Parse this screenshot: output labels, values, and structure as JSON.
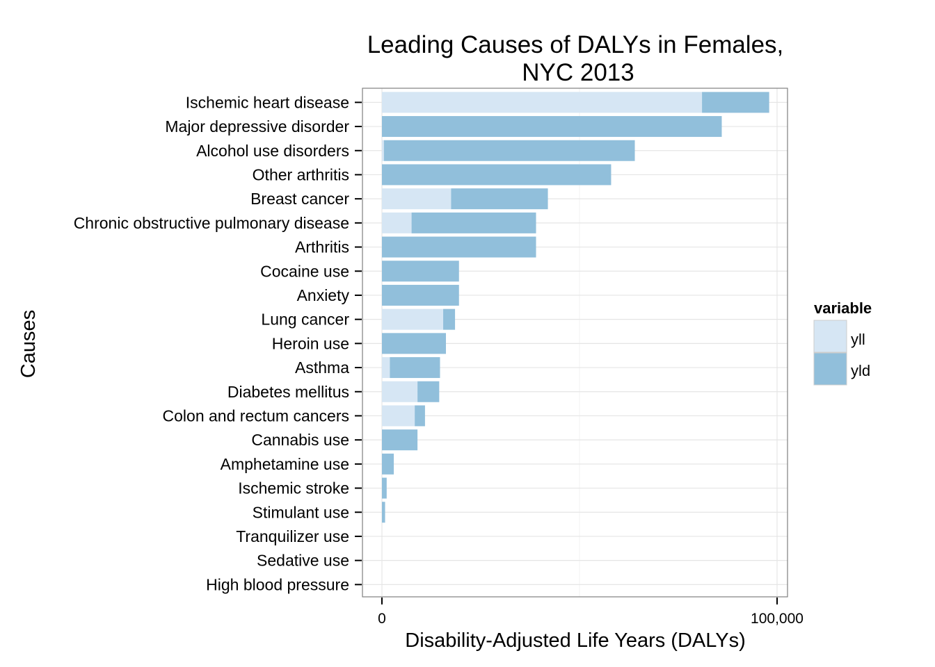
{
  "chart_data": {
    "type": "bar",
    "orientation": "horizontal",
    "stacked": true,
    "title": "Leading Causes of DALYs in Females, NYC 2013",
    "title_lines": [
      "Leading Causes of DALYs in Females,",
      "NYC 2013"
    ],
    "xlabel": "Disability-Adjusted Life Years (DALYs)",
    "ylabel": "Causes",
    "xlim": [
      -5000,
      102000
    ],
    "x_ticks": [
      {
        "value": 0,
        "label": "0"
      },
      {
        "value": 100000,
        "label": "100,000"
      }
    ],
    "grid": true,
    "legend": {
      "title": "variable",
      "position": "right"
    },
    "categories": [
      "Ischemic heart disease",
      "Major depressive disorder",
      "Alcohol use disorders",
      "Other arthritis",
      "Breast cancer",
      "Chronic obstructive pulmonary disease",
      "Arthritis",
      "Cocaine use",
      "Anxiety",
      "Lung cancer",
      "Heroin use",
      "Asthma",
      "Diabetes mellitus",
      "Colon and rectum cancers",
      "Cannabis use",
      "Amphetamine use",
      "Ischemic stroke",
      "Stimulant use",
      "Tranquilizer use",
      "Sedative use",
      "High blood pressure"
    ],
    "series": [
      {
        "name": "yll",
        "color": "#d6e6f4",
        "values": [
          81000,
          0,
          500,
          0,
          17500,
          7500,
          0,
          0,
          0,
          15500,
          0,
          2000,
          9000,
          8300,
          0,
          0,
          0,
          0,
          0,
          0,
          0
        ]
      },
      {
        "name": "yld",
        "color": "#91bfdb",
        "values": [
          17000,
          86000,
          63500,
          58000,
          24500,
          31500,
          39000,
          19500,
          19500,
          3000,
          16200,
          12700,
          5500,
          2600,
          9000,
          3000,
          1200,
          800,
          0,
          0,
          0
        ]
      }
    ]
  }
}
